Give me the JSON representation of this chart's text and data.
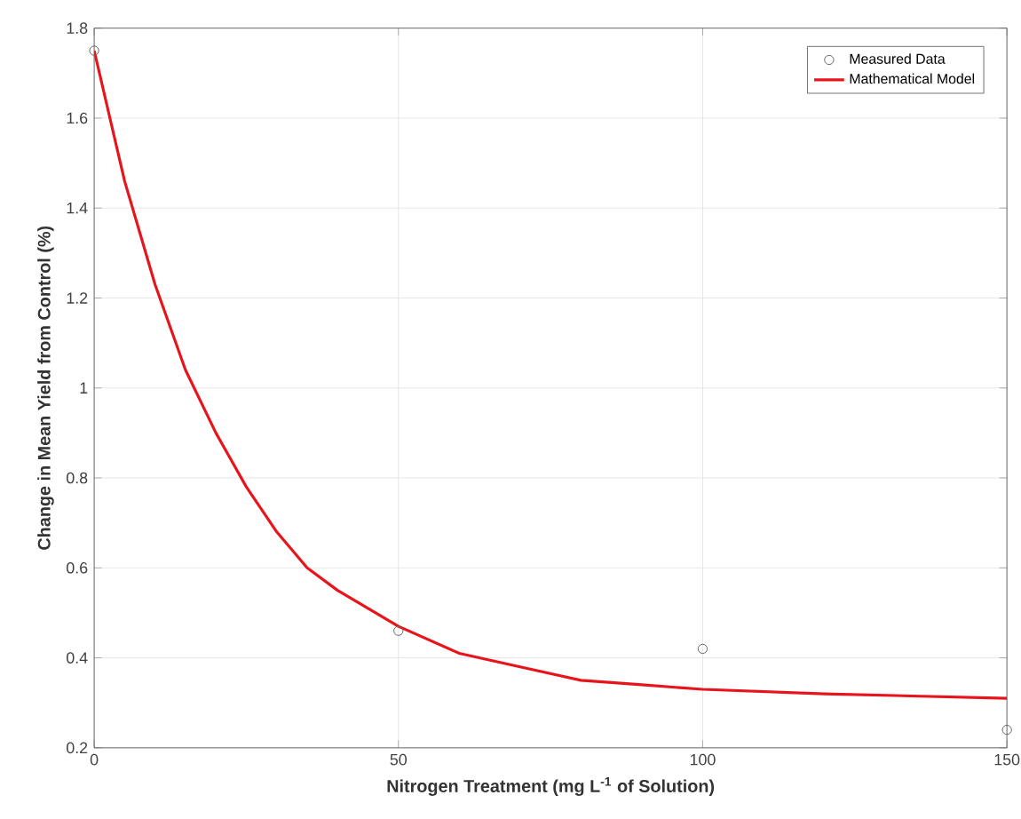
{
  "chart_data": {
    "type": "scatter",
    "xlabel": "Nitrogen Treatment (mg L$^{-1}$ of Solution)",
    "ylabel": "Change in Mean Yield from Control (%)",
    "xlim": [
      0,
      150
    ],
    "ylim": [
      0.2,
      1.8
    ],
    "xticks": [
      0,
      50,
      100,
      150
    ],
    "yticks": [
      0.2,
      0.4,
      0.6,
      0.8,
      1,
      1.2,
      1.4,
      1.6,
      1.8
    ],
    "grid": true,
    "legend": "top right",
    "series": [
      {
        "name": "Measured Data",
        "marker": "circle",
        "color": "#666666",
        "x": [
          0,
          50,
          100,
          150
        ],
        "values": [
          1.75,
          0.46,
          0.42,
          0.24
        ]
      },
      {
        "name": "Mathematical Model",
        "type": "line",
        "marker": "none",
        "color": "#e8141c",
        "x": [
          0,
          5,
          10,
          15,
          20,
          25,
          30,
          35,
          40,
          50,
          60,
          70,
          80,
          90,
          100,
          120,
          150
        ],
        "values": [
          1.75,
          1.46,
          1.23,
          1.04,
          0.9,
          0.78,
          0.68,
          0.6,
          0.55,
          0.47,
          0.41,
          0.38,
          0.35,
          0.34,
          0.33,
          0.32,
          0.31
        ]
      }
    ]
  }
}
